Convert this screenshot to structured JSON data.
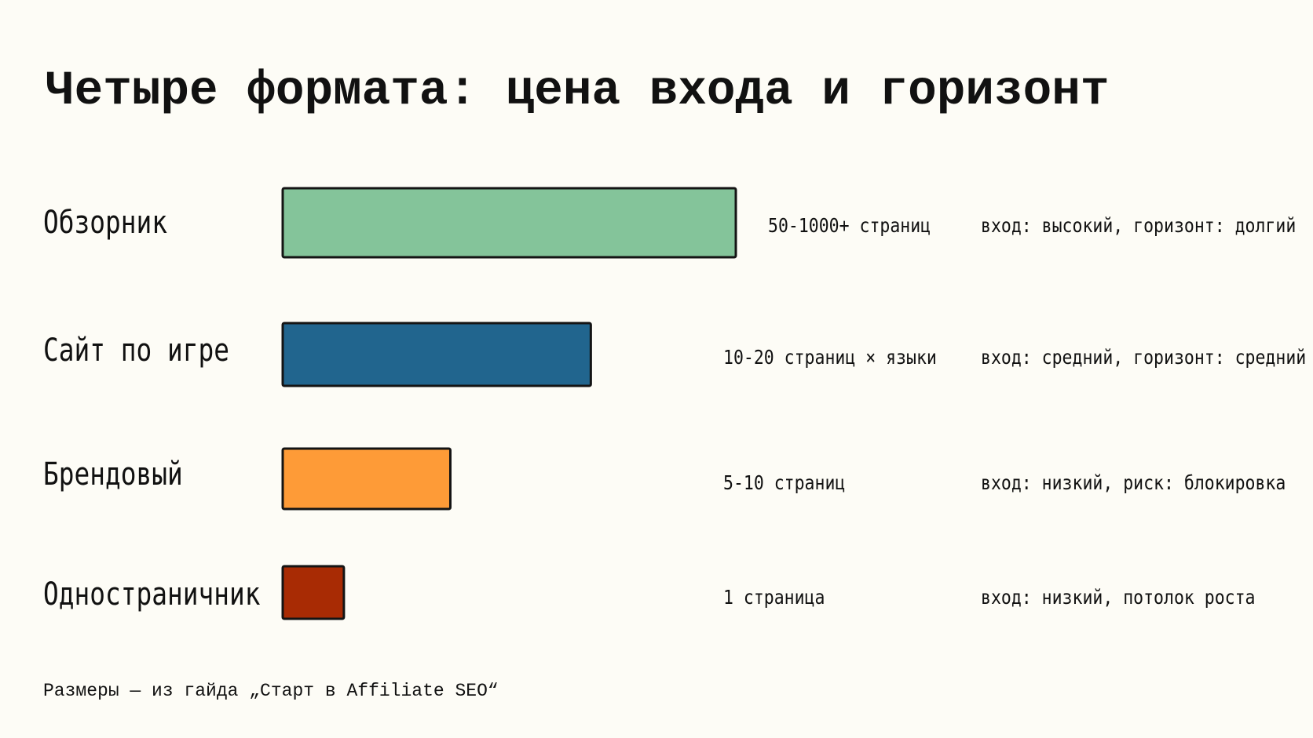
{
  "slide": {
    "title": "Четыре формата: цена входа и горизонт",
    "footnote": "Размеры — из гайда „Старт в Affiliate SEO“"
  },
  "chart_data": {
    "type": "bar",
    "orientation": "horizontal",
    "categories": [
      "Обзорник",
      "Сайт по игре",
      "Брендовый",
      "Одностраничник"
    ],
    "values": [
      1000,
      680,
      370,
      135
    ],
    "value_labels": [
      "50-1000+ страниц",
      "10-20 страниц × языки",
      "5-10 страниц",
      "1 страница"
    ],
    "notes": [
      "вход: высокий, горизонт: долгий",
      "вход: средний, горизонт: средний",
      "вход: низкий, риск: блокировка",
      "вход: низкий, потолок роста"
    ],
    "colors": [
      "#84c49a",
      "#21658e",
      "#fe9b37",
      "#a82b04"
    ],
    "xlim": [
      0,
      1000
    ],
    "grid": false,
    "axes_visible": false
  }
}
